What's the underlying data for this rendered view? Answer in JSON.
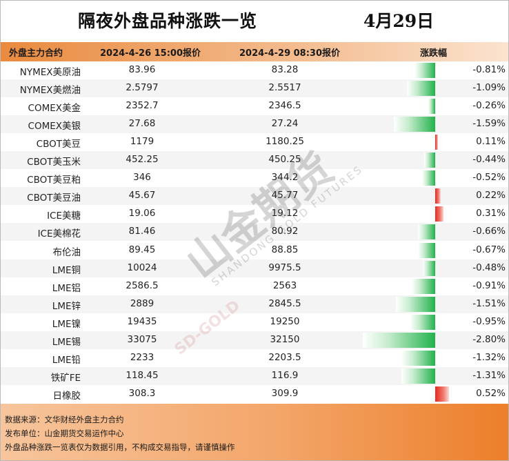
{
  "title": "隔夜外盘品种涨跌一览",
  "date": "4月29日",
  "headers": [
    "外盘主力合约",
    "2024-4-26 15:00报价",
    "2024-4-29 08:30报价",
    "涨跌幅"
  ],
  "rows": [
    {
      "name": "NYMEX美原油",
      "p1": "83.96",
      "p2": "83.28",
      "pct": "-0.81%",
      "change": -0.81
    },
    {
      "name": "NYMEX美燃油",
      "p1": "2.5797",
      "p2": "2.5517",
      "pct": "-1.09%",
      "change": -1.09
    },
    {
      "name": "COMEX美金",
      "p1": "2352.7",
      "p2": "2346.5",
      "pct": "-0.26%",
      "change": -0.26
    },
    {
      "name": "COMEX美银",
      "p1": "27.68",
      "p2": "27.24",
      "pct": "-1.59%",
      "change": -1.59
    },
    {
      "name": "CBOT美豆",
      "p1": "1179",
      "p2": "1180.25",
      "pct": "0.11%",
      "change": 0.11
    },
    {
      "name": "CBOT美玉米",
      "p1": "452.25",
      "p2": "450.25",
      "pct": "-0.44%",
      "change": -0.44
    },
    {
      "name": "CBOT美豆粕",
      "p1": "346",
      "p2": "344.2",
      "pct": "-0.52%",
      "change": -0.52
    },
    {
      "name": "CBOT美豆油",
      "p1": "45.67",
      "p2": "45.77",
      "pct": "0.22%",
      "change": 0.22
    },
    {
      "name": "ICE美糖",
      "p1": "19.06",
      "p2": "19.12",
      "pct": "0.31%",
      "change": 0.31
    },
    {
      "name": "ICE美棉花",
      "p1": "81.46",
      "p2": "80.92",
      "pct": "-0.66%",
      "change": -0.66
    },
    {
      "name": "布伦油",
      "p1": "89.45",
      "p2": "88.85",
      "pct": "-0.67%",
      "change": -0.67
    },
    {
      "name": "LME铜",
      "p1": "10024",
      "p2": "9975.5",
      "pct": "-0.48%",
      "change": -0.48
    },
    {
      "name": "LME铝",
      "p1": "2586.5",
      "p2": "2563",
      "pct": "-0.91%",
      "change": -0.91
    },
    {
      "name": "LME锌",
      "p1": "2889",
      "p2": "2845.5",
      "pct": "-1.51%",
      "change": -1.51
    },
    {
      "name": "LME镍",
      "p1": "19435",
      "p2": "19250",
      "pct": "-0.95%",
      "change": -0.95
    },
    {
      "name": "LME锡",
      "p1": "33075",
      "p2": "32150",
      "pct": "-2.80%",
      "change": -2.8
    },
    {
      "name": "LME铅",
      "p1": "2233",
      "p2": "2203.5",
      "pct": "-1.32%",
      "change": -1.32
    },
    {
      "name": "铁矿FE",
      "p1": "118.45",
      "p2": "116.9",
      "pct": "-1.31%",
      "change": -1.31
    },
    {
      "name": "日橡胶",
      "p1": "308.3",
      "p2": "309.9",
      "pct": "0.52%",
      "change": 0.52
    }
  ],
  "watermark": {
    "brand": "山金期货",
    "sub": "SHANDONG GOLD FUTURES",
    "code": "SD-GOLD"
  },
  "footer": [
    "数据来源：文华财经外盘主力合约",
    "发布单位：山金期货交易运作中心",
    "外盘品种涨跌一览表仅为数据引用，不构成交易指导，请谨慎操作"
  ],
  "colors": {
    "up": "#e8271c",
    "down": "#22b24c",
    "header": "#e98a3e",
    "footer": "#ec7f2a"
  }
}
